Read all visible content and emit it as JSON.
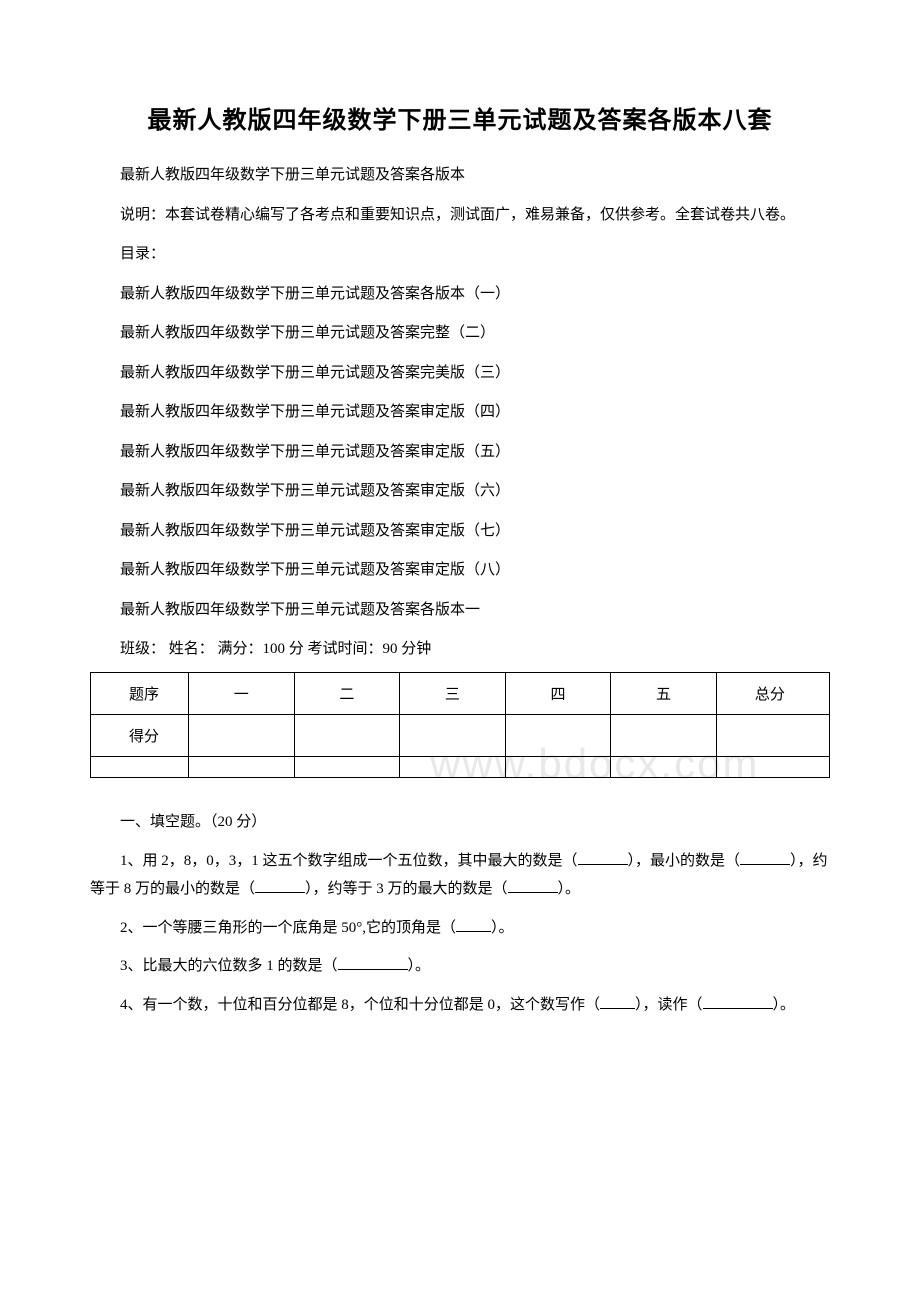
{
  "title": "最新人教版四年级数学下册三单元试题及答案各版本八套",
  "intro": "最新人教版四年级数学下册三单元试题及答案各版本",
  "description": "说明：本套试卷精心编写了各考点和重要知识点，测试面广，难易兼备，仅供参考。全套试卷共八卷。",
  "toc_header": "目录：",
  "toc": [
    "最新人教版四年级数学下册三单元试题及答案各版本（一）",
    "最新人教版四年级数学下册三单元试题及答案完整（二）",
    "最新人教版四年级数学下册三单元试题及答案完美版（三）",
    "最新人教版四年级数学下册三单元试题及答案审定版（四）",
    "最新人教版四年级数学下册三单元试题及答案审定版（五）",
    "最新人教版四年级数学下册三单元试题及答案审定版（六）",
    "最新人教版四年级数学下册三单元试题及答案审定版（七）",
    "最新人教版四年级数学下册三单元试题及答案审定版（八）"
  ],
  "subtitle": "最新人教版四年级数学下册三单元试题及答案各版本一",
  "info_line": "班级：  姓名：  满分：100 分 考试时间：90 分钟",
  "table": {
    "row1_label": "题序",
    "row2_label": "得分",
    "columns": [
      "一",
      "二",
      "三",
      "四",
      "五"
    ],
    "total_label": "总分"
  },
  "section_header": "一、填空题。（20 分）",
  "questions": {
    "q1_part1": "1、用 2，8，0，3，1 这五个数字组成一个五位数，其中最大的数是（",
    "q1_part2": "），最小的数是（",
    "q1_part3": "），约等于 8 万的最小的数是（",
    "q1_part4": "），约等于 3 万的最大的数是（",
    "q1_part5": "）。",
    "q2_part1": "2、一个等腰三角形的一个底角是 50°,它的顶角是（",
    "q2_part2": "）。",
    "q3_part1": "3、比最大的六位数多 1 的数是（",
    "q3_part2": "）。",
    "q4_part1": "4、有一个数，十位和百分位都是 8，个位和十分位都是 0，这个数写作（",
    "q4_part2": "），读作（",
    "q4_part3": "）。"
  },
  "watermark": "www.bdocx.com"
}
